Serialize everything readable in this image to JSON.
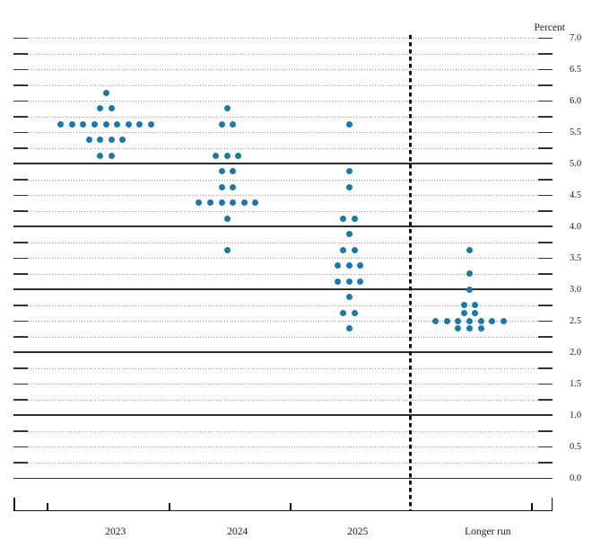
{
  "axis": {
    "unit_label": "Percent",
    "y_min": 0.0,
    "y_max": 7.0,
    "y_grid_step": 0.25,
    "y_label_step": 0.5,
    "y_label_decimals": 1,
    "y_solid_line_values": [
      0,
      1,
      2,
      3,
      4,
      5
    ]
  },
  "x_axis": {
    "categories": [
      "2023",
      "2024",
      "2025",
      "Longer run"
    ],
    "separator_before_category": "Longer run"
  },
  "chart_data": {
    "type": "scatter",
    "subtype": "fomc-dot-plot",
    "ylabel": "Percent",
    "ylim": [
      0.0,
      7.0
    ],
    "grid": "dotted every 0.25; solid lines at 0,1,2,3,4,5; dashed vertical separator before Longer run",
    "legend_position": "none",
    "categories": [
      "2023",
      "2024",
      "2025",
      "Longer run"
    ],
    "series": [
      {
        "category": "2023",
        "dots": [
          {
            "value": 6.125,
            "count": 1
          },
          {
            "value": 5.875,
            "count": 2
          },
          {
            "value": 5.625,
            "count": 9
          },
          {
            "value": 5.375,
            "count": 4
          },
          {
            "value": 5.125,
            "count": 2
          }
        ]
      },
      {
        "category": "2024",
        "dots": [
          {
            "value": 5.875,
            "count": 1
          },
          {
            "value": 5.625,
            "count": 2
          },
          {
            "value": 5.125,
            "count": 3
          },
          {
            "value": 4.875,
            "count": 2
          },
          {
            "value": 4.625,
            "count": 2
          },
          {
            "value": 4.375,
            "count": 6
          },
          {
            "value": 4.125,
            "count": 1
          },
          {
            "value": 3.625,
            "count": 1
          }
        ]
      },
      {
        "category": "2025",
        "dots": [
          {
            "value": 5.625,
            "count": 1
          },
          {
            "value": 4.875,
            "count": 1
          },
          {
            "value": 4.625,
            "count": 1
          },
          {
            "value": 4.125,
            "count": 2
          },
          {
            "value": 3.875,
            "count": 1
          },
          {
            "value": 3.625,
            "count": 2
          },
          {
            "value": 3.375,
            "count": 3
          },
          {
            "value": 3.125,
            "count": 3
          },
          {
            "value": 2.875,
            "count": 1
          },
          {
            "value": 2.625,
            "count": 2
          },
          {
            "value": 2.375,
            "count": 1
          }
        ]
      },
      {
        "category": "Longer run",
        "dots": [
          {
            "value": 3.625,
            "count": 1
          },
          {
            "value": 3.25,
            "count": 1
          },
          {
            "value": 3.0,
            "count": 1
          },
          {
            "value": 2.75,
            "count": 2
          },
          {
            "value": 2.625,
            "count": 2
          },
          {
            "value": 2.5,
            "count": 7
          },
          {
            "value": 2.375,
            "count": 3
          }
        ]
      }
    ]
  },
  "colors": {
    "dot": "#1b78a7",
    "grid_dotted": "#8e8e8e",
    "grid_solid": "#2e2e2e",
    "axis": "#111111",
    "text": "#1c1c1c"
  }
}
